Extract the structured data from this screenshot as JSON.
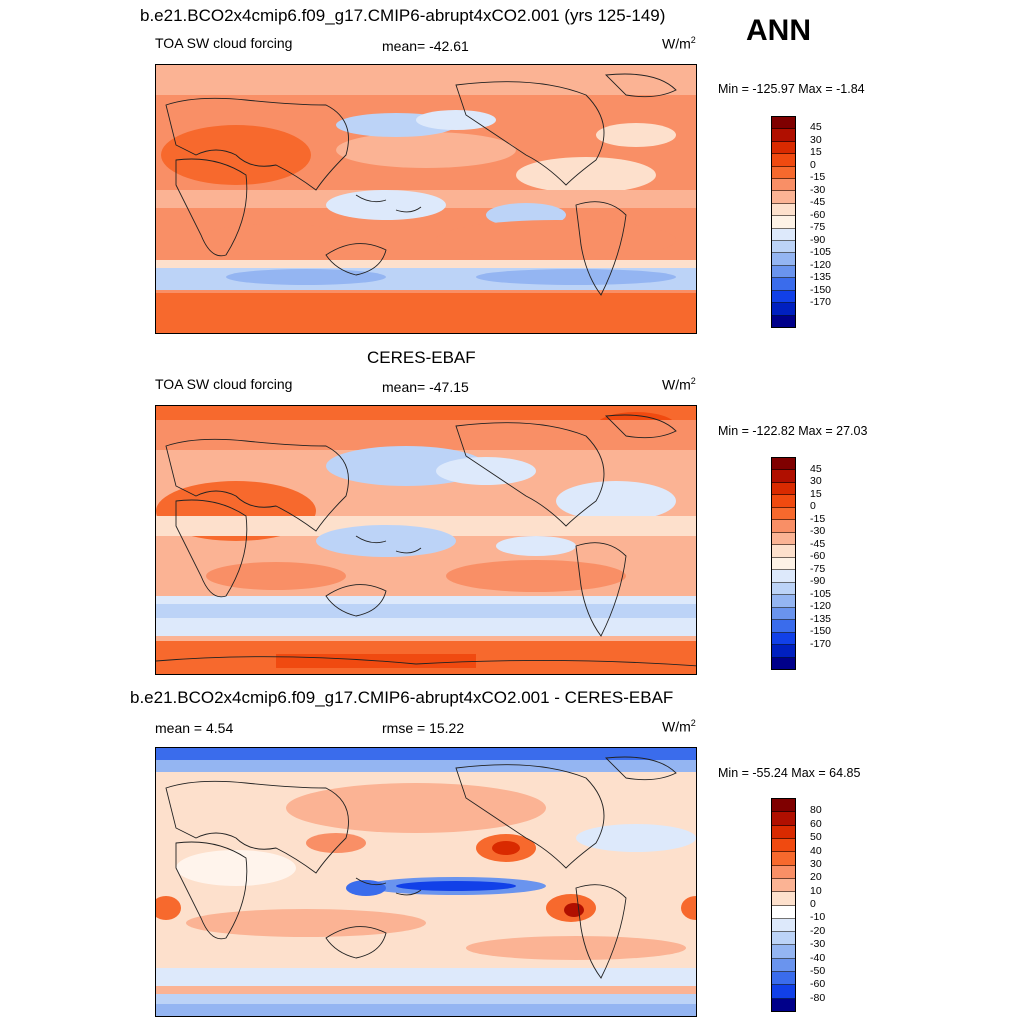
{
  "season": "ANN",
  "panels": [
    {
      "title": "b.e21.BCO2x4cmip6.f09_g17.CMIP6-abrupt4xCO2.001 (yrs 125-149)",
      "left_label": "TOA SW cloud forcing",
      "center_label": "mean= -42.61",
      "units": "W/m",
      "units_sup": "2",
      "minmax": "Min = -125.97 Max =  -1.84",
      "scale": "A"
    },
    {
      "title": "CERES-EBAF",
      "left_label": "TOA SW cloud forcing",
      "center_label": "mean= -47.15",
      "units": "W/m",
      "units_sup": "2",
      "minmax": "Min = -122.82 Max =  27.03",
      "scale": "A"
    },
    {
      "title": "b.e21.BCO2x4cmip6.f09_g17.CMIP6-abrupt4xCO2.001 - CERES-EBAF",
      "left_label": "mean =   4.54",
      "center_label": "rmse =  15.22",
      "units": "W/m",
      "units_sup": "2",
      "minmax": "Min = -55.24 Max =  64.85",
      "scale": "B"
    }
  ],
  "colorbars": {
    "A": {
      "ticks": [
        "45",
        "30",
        "15",
        "0",
        "-15",
        "-30",
        "-45",
        "-60",
        "-75",
        "-90",
        "-105",
        "-120",
        "-135",
        "-150",
        "-170"
      ],
      "colors": [
        "#7f0000",
        "#b00f00",
        "#d92a00",
        "#f04a10",
        "#f7692d",
        "#f98f66",
        "#fbb394",
        "#fde0cc",
        "#fdf2e6",
        "#dde9fb",
        "#bcd3f7",
        "#94b5f2",
        "#6a94ee",
        "#3a6cec",
        "#1140e8",
        "#0020c0",
        "#00008a"
      ]
    },
    "B": {
      "ticks": [
        "80",
        "60",
        "50",
        "40",
        "30",
        "20",
        "10",
        "0",
        "-10",
        "-20",
        "-30",
        "-40",
        "-50",
        "-60",
        "-80"
      ],
      "colors": [
        "#7f0000",
        "#b00f00",
        "#d92a00",
        "#f04a10",
        "#f7692d",
        "#f98f66",
        "#fbb394",
        "#fde0cc",
        "#ffffff",
        "#dde9fb",
        "#bcd3f7",
        "#94b5f2",
        "#6a94ee",
        "#3a6cec",
        "#1140e8",
        "#00008a"
      ]
    }
  }
}
